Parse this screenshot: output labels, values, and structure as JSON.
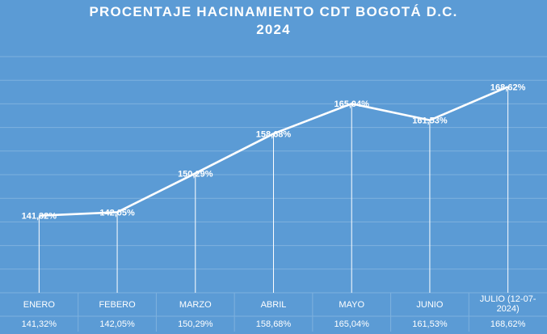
{
  "chart_data": {
    "type": "line",
    "title_line1": "PROCENTAJE HACINAMIENTO CDT BOGOTÁ D.C.",
    "title_line2": "2024",
    "categories": [
      "ENERO",
      "FEBERO",
      "MARZO",
      "ABRIL",
      "MAYO",
      "JUNIO",
      "JULIO (12-07-2024)"
    ],
    "categories_display": [
      [
        "ENERO"
      ],
      [
        "FEBERO"
      ],
      [
        "MARZO"
      ],
      [
        "ABRIL"
      ],
      [
        "MAYO"
      ],
      [
        "JUNIO"
      ],
      [
        "JULIO (12-07-",
        "2024)"
      ]
    ],
    "values": [
      141.32,
      142.05,
      150.29,
      158.68,
      165.04,
      161.53,
      168.62
    ],
    "value_labels": [
      "141,32%",
      "142,05%",
      "150,29%",
      "158,68%",
      "165,04%",
      "161,53%",
      "168,62%"
    ],
    "ylim": [
      125,
      175
    ],
    "grid": true,
    "data_table": true,
    "colors": {
      "background": "#5b9bd5",
      "line": "#ffffff",
      "grid": "#7eb1de"
    }
  }
}
